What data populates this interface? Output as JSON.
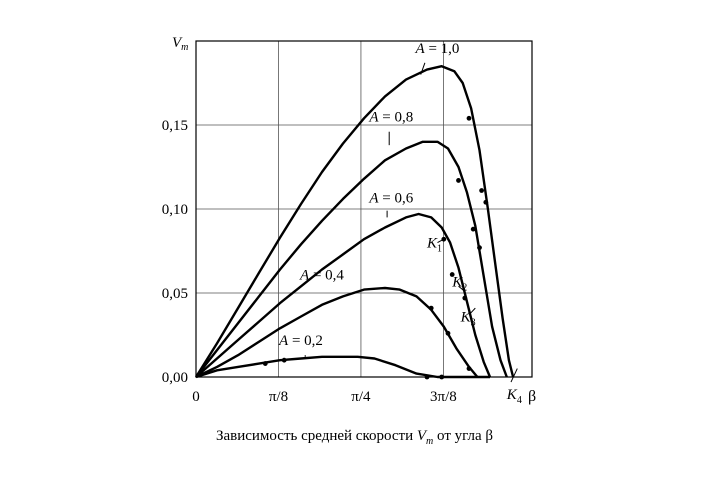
{
  "chart_data": {
    "type": "line",
    "ylabel": "Vm",
    "ylabel_main": "V",
    "ylabel_sub": "m",
    "xlabel": "β",
    "xlim": [
      0,
      1.6
    ],
    "ylim": [
      0,
      0.2
    ],
    "x_ticks": [
      {
        "value": 0,
        "label": "0"
      },
      {
        "value": 0.3927,
        "label": "π/8"
      },
      {
        "value": 0.7854,
        "label": "π/4"
      },
      {
        "value": 1.1781,
        "label": "3π/8"
      }
    ],
    "y_ticks": [
      {
        "value": 0,
        "label": "0,00"
      },
      {
        "value": 0.05,
        "label": "0,05"
      },
      {
        "value": 0.1,
        "label": "0,10"
      },
      {
        "value": 0.15,
        "label": "0,15"
      }
    ],
    "grid": true,
    "series": [
      {
        "name": "A = 1,0",
        "name_var": "A",
        "name_val": " = 1,0",
        "label_at": [
          1.15,
          0.193
        ],
        "leader": [
          [
            1.09,
            0.187
          ],
          [
            1.07,
            0.18
          ]
        ],
        "points": [
          [
            0,
            0
          ],
          [
            0.1,
            0.02
          ],
          [
            0.2,
            0.041
          ],
          [
            0.3,
            0.062
          ],
          [
            0.4,
            0.083
          ],
          [
            0.5,
            0.103
          ],
          [
            0.6,
            0.122
          ],
          [
            0.7,
            0.139
          ],
          [
            0.8,
            0.154
          ],
          [
            0.9,
            0.167
          ],
          [
            1.0,
            0.177
          ],
          [
            1.1,
            0.183
          ],
          [
            1.17,
            0.185
          ],
          [
            1.23,
            0.182
          ],
          [
            1.27,
            0.175
          ],
          [
            1.31,
            0.16
          ],
          [
            1.35,
            0.135
          ],
          [
            1.39,
            0.1
          ],
          [
            1.42,
            0.072
          ],
          [
            1.46,
            0.035
          ],
          [
            1.49,
            0.01
          ],
          [
            1.51,
            0.0
          ]
        ],
        "markers": [
          [
            1.3,
            0.154
          ],
          [
            1.36,
            0.111
          ],
          [
            1.38,
            0.104
          ]
        ]
      },
      {
        "name": "A = 0,8",
        "name_var": "A",
        "name_val": " = 0,8",
        "label_at": [
          0.93,
          0.152
        ],
        "leader": [
          [
            0.92,
            0.146
          ],
          [
            0.92,
            0.138
          ]
        ],
        "points": [
          [
            0,
            0
          ],
          [
            0.1,
            0.016
          ],
          [
            0.2,
            0.032
          ],
          [
            0.3,
            0.048
          ],
          [
            0.4,
            0.064
          ],
          [
            0.5,
            0.079
          ],
          [
            0.6,
            0.093
          ],
          [
            0.7,
            0.106
          ],
          [
            0.8,
            0.118
          ],
          [
            0.9,
            0.129
          ],
          [
            1.0,
            0.136
          ],
          [
            1.08,
            0.14
          ],
          [
            1.15,
            0.14
          ],
          [
            1.2,
            0.136
          ],
          [
            1.25,
            0.125
          ],
          [
            1.29,
            0.11
          ],
          [
            1.33,
            0.09
          ],
          [
            1.37,
            0.06
          ],
          [
            1.41,
            0.03
          ],
          [
            1.45,
            0.01
          ],
          [
            1.48,
            0.0
          ]
        ],
        "markers": [
          [
            1.25,
            0.117
          ],
          [
            1.32,
            0.088
          ],
          [
            1.35,
            0.077
          ]
        ]
      },
      {
        "name": "A = 0,6",
        "name_var": "A",
        "name_val": " = 0,6",
        "label_at": [
          0.93,
          0.104
        ],
        "leader": [
          [
            0.91,
            0.099
          ],
          [
            0.91,
            0.095
          ]
        ],
        "points": [
          [
            0,
            0
          ],
          [
            0.1,
            0.011
          ],
          [
            0.2,
            0.022
          ],
          [
            0.3,
            0.033
          ],
          [
            0.4,
            0.044
          ],
          [
            0.5,
            0.054
          ],
          [
            0.6,
            0.064
          ],
          [
            0.7,
            0.073
          ],
          [
            0.8,
            0.082
          ],
          [
            0.9,
            0.089
          ],
          [
            1.0,
            0.095
          ],
          [
            1.06,
            0.097
          ],
          [
            1.12,
            0.095
          ],
          [
            1.17,
            0.089
          ],
          [
            1.21,
            0.08
          ],
          [
            1.25,
            0.065
          ],
          [
            1.29,
            0.045
          ],
          [
            1.33,
            0.025
          ],
          [
            1.37,
            0.009
          ],
          [
            1.4,
            0.0
          ]
        ],
        "markers": [
          [
            1.18,
            0.082
          ],
          [
            1.22,
            0.061
          ],
          [
            1.28,
            0.047
          ]
        ]
      },
      {
        "name": "A = 0,4",
        "name_var": "A",
        "name_val": " = 0,4",
        "label_at": [
          0.6,
          0.058
        ],
        "leader": [
          [
            0.85,
            0.053
          ],
          [
            0.85,
            0.052
          ]
        ],
        "points": [
          [
            0,
            0
          ],
          [
            0.1,
            0.006
          ],
          [
            0.2,
            0.013
          ],
          [
            0.3,
            0.021
          ],
          [
            0.4,
            0.029
          ],
          [
            0.5,
            0.036
          ],
          [
            0.6,
            0.043
          ],
          [
            0.7,
            0.048
          ],
          [
            0.8,
            0.052
          ],
          [
            0.9,
            0.053
          ],
          [
            0.97,
            0.052
          ],
          [
            1.05,
            0.048
          ],
          [
            1.12,
            0.04
          ],
          [
            1.18,
            0.03
          ],
          [
            1.24,
            0.017
          ],
          [
            1.3,
            0.006
          ],
          [
            1.34,
            0.0
          ]
        ],
        "markers": [
          [
            1.12,
            0.041
          ],
          [
            1.2,
            0.026
          ],
          [
            1.3,
            0.005
          ]
        ]
      },
      {
        "name": "A = 0,2",
        "name_var": "A",
        "name_val": " = 0,2",
        "label_at": [
          0.5,
          0.019
        ],
        "leader": [
          [
            0.52,
            0.013
          ],
          [
            0.52,
            0.012
          ]
        ],
        "points": [
          [
            0,
            0
          ],
          [
            0.1,
            0.004
          ],
          [
            0.2,
            0.006
          ],
          [
            0.3,
            0.008
          ],
          [
            0.4,
            0.01
          ],
          [
            0.5,
            0.011
          ],
          [
            0.6,
            0.012
          ],
          [
            0.7,
            0.012
          ],
          [
            0.77,
            0.012
          ],
          [
            0.85,
            0.011
          ],
          [
            0.95,
            0.007
          ],
          [
            1.05,
            0.002
          ],
          [
            1.15,
            0.0
          ],
          [
            1.4,
            0.0
          ]
        ],
        "markers": [
          [
            0.33,
            0.008
          ],
          [
            0.42,
            0.01
          ],
          [
            1.1,
            0.0
          ],
          [
            1.17,
            0.0
          ]
        ]
      }
    ],
    "annotations": [
      {
        "text": "K",
        "sub": "1",
        "at": [
          1.1,
          0.077
        ],
        "leader": [
          [
            1.18,
            0.082
          ],
          [
            1.15,
            0.08
          ]
        ]
      },
      {
        "text": "K",
        "sub": "2",
        "at": [
          1.22,
          0.054
        ],
        "leader": [
          [
            1.28,
            0.051
          ],
          [
            1.25,
            0.054
          ]
        ]
      },
      {
        "text": "K",
        "sub": "3",
        "at": [
          1.26,
          0.033
        ],
        "leader": [
          [
            1.33,
            0.041
          ],
          [
            1.3,
            0.037
          ]
        ]
      },
      {
        "text": "K",
        "sub": "4",
        "at": [
          1.48,
          -0.013
        ],
        "leader": [
          [
            1.53,
            0.005
          ],
          [
            1.5,
            -0.003
          ]
        ]
      }
    ],
    "caption": {
      "pre": "Зависимость средней скорости ",
      "var": "V",
      "sub": "m",
      "post": " от угла β"
    }
  }
}
